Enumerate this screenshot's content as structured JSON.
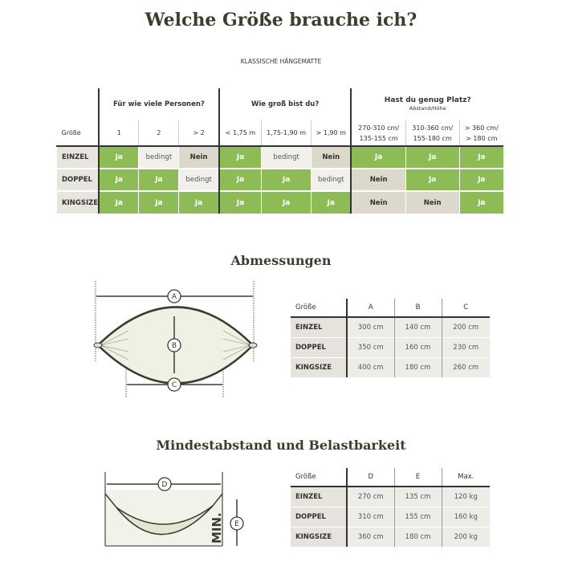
{
  "title": "Welche Größe brauche ich?",
  "subtitle": "KLASSISCHE HÄNGEMATTE",
  "main_table": {
    "groups": [
      "Für wie viele Personen?",
      "Wie groß bist du?",
      "Hast du genug Platz?"
    ],
    "group3_sub": "Abstand/Höhe",
    "size_header": "Größe",
    "columns": [
      "1",
      "2",
      "> 2",
      "< 1,75 m",
      "1,75-1,90 m",
      "> 1,90 m",
      "270-310 cm/ 135-155 cm",
      "310-360 cm/ 155-180 cm",
      "> 360 cm/ > 180 cm"
    ],
    "rows": [
      {
        "label": "EINZEL",
        "cells": [
          "Ja",
          "bedingt",
          "Nein",
          "Ja",
          "bedingt",
          "Nein",
          "Ja",
          "Ja",
          "Ja"
        ]
      },
      {
        "label": "DOPPEL",
        "cells": [
          "Ja",
          "Ja",
          "bedingt",
          "Ja",
          "Ja",
          "bedingt",
          "Nein",
          "Ja",
          "Ja"
        ]
      },
      {
        "label": "KINGSIZE",
        "cells": [
          "Ja",
          "Ja",
          "Ja",
          "Ja",
          "Ja",
          "Ja",
          "Nein",
          "Nein",
          "Ja"
        ]
      }
    ]
  },
  "colors": {
    "ja": "#8dbb55",
    "bedingt": "#f1f0eb",
    "nein": "#dcd8cb"
  },
  "dimensions": {
    "heading": "Abmessungen",
    "diagram_labels": [
      "A",
      "B",
      "C"
    ],
    "headers": [
      "Größe",
      "A",
      "B",
      "C"
    ],
    "rows": [
      [
        "EINZEL",
        "300 cm",
        "140 cm",
        "200 cm"
      ],
      [
        "DOPPEL",
        "350 cm",
        "160 cm",
        "230 cm"
      ],
      [
        "KINGSIZE",
        "400 cm",
        "180 cm",
        "260 cm"
      ]
    ]
  },
  "minimum": {
    "heading": "Mindestabstand und Belastbarkeit",
    "diagram_labels": [
      "D",
      "E"
    ],
    "min_label": "MIN.",
    "headers": [
      "Größe",
      "D",
      "E",
      "Max."
    ],
    "rows": [
      [
        "EINZEL",
        "270 cm",
        "135 cm",
        "120 kg"
      ],
      [
        "DOPPEL",
        "310 cm",
        "155 cm",
        "160 kg"
      ],
      [
        "KINGSIZE",
        "360 cm",
        "180 cm",
        "200 kg"
      ]
    ]
  }
}
